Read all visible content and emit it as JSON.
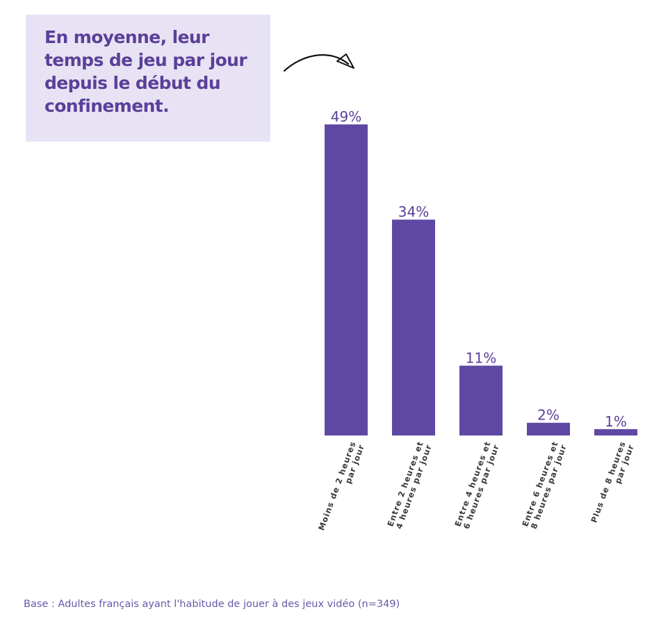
{
  "colors": {
    "bar": "#5f48a3",
    "title_text": "#5a4099",
    "title_bg": "#e8e3f4",
    "value_label": "#5a4099",
    "axis_label": "#3a3a3a",
    "footer": "#6a57a8"
  },
  "header": {
    "title": "En moyenne, leur temps de jeu par jour depuis le début du confinement."
  },
  "footer": {
    "text": "Base : Adultes français ayant l'habitude de jouer à des jeux vidéo (n=349)"
  },
  "chart_data": {
    "type": "bar",
    "title": "",
    "xlabel": "",
    "ylabel": "",
    "ylim": [
      0,
      50
    ],
    "grid": false,
    "legend": "none",
    "categories": [
      [
        "Moins de 2 heures",
        "par jour"
      ],
      [
        "Entre 2 heures et",
        "4 heures par jour"
      ],
      [
        "Entre 4 heures et",
        "6 heures par jour"
      ],
      [
        "Entre 6 heures et",
        "8 heures par jour"
      ],
      [
        "Plus de 8 heures",
        "par jour"
      ]
    ],
    "values": [
      49,
      34,
      11,
      2,
      1
    ],
    "value_labels": [
      "49%",
      "34%",
      "11%",
      "2%",
      "1%"
    ]
  }
}
